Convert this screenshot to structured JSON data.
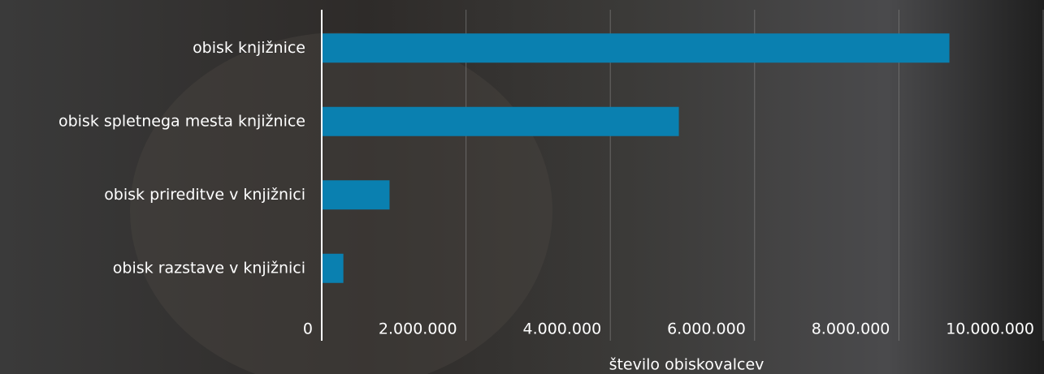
{
  "chart_data": {
    "type": "bar",
    "orientation": "horizontal",
    "categories": [
      "obisk knjižnice",
      "obisk spletnega mesta knjižnice",
      "obisk prireditve v knjižnici",
      "obisk razstave v knjižnici"
    ],
    "values": [
      8700000,
      4950000,
      940000,
      300000
    ],
    "color": "#0a80b0",
    "xlabel": "število obiskovalcev",
    "xlim": [
      0,
      10000000
    ],
    "xticks": [
      0,
      {
        "value": 2000000,
        "label": "2.000.000"
      },
      {
        "value": 4000000,
        "label": "4.000.000"
      },
      {
        "value": 6000000,
        "label": "6.000.000"
      },
      {
        "value": 8000000,
        "label": "8.000.000"
      },
      {
        "value": 10000000,
        "label": "10.000.000"
      }
    ],
    "grid": true
  }
}
